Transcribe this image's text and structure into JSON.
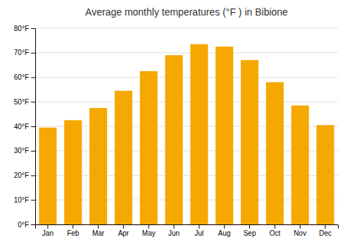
{
  "chart_data": {
    "type": "bar",
    "title": "Average monthly temperatures (°F ) in Bibione",
    "categories": [
      "Jan",
      "Feb",
      "Mar",
      "Apr",
      "May",
      "Jun",
      "Jul",
      "Aug",
      "Sep",
      "Oct",
      "Nov",
      "Dec"
    ],
    "values": [
      39.5,
      42.5,
      47.5,
      54.5,
      62.5,
      69.0,
      73.5,
      72.5,
      67.0,
      58.0,
      48.5,
      40.5
    ],
    "color": "#F5A800",
    "ylim": [
      0,
      80
    ],
    "yticks": [
      {
        "value": 0,
        "label": "0°F"
      },
      {
        "value": 10,
        "label": "10°F"
      },
      {
        "value": 20,
        "label": "20°F"
      },
      {
        "value": 30,
        "label": "30°F"
      },
      {
        "value": 40,
        "label": "40°F"
      },
      {
        "value": 50,
        "label": "50°F"
      },
      {
        "value": 60,
        "label": "60°F"
      },
      {
        "value": 70,
        "label": "70°F"
      },
      {
        "value": 80,
        "label": "80°F"
      }
    ],
    "grid": true
  }
}
